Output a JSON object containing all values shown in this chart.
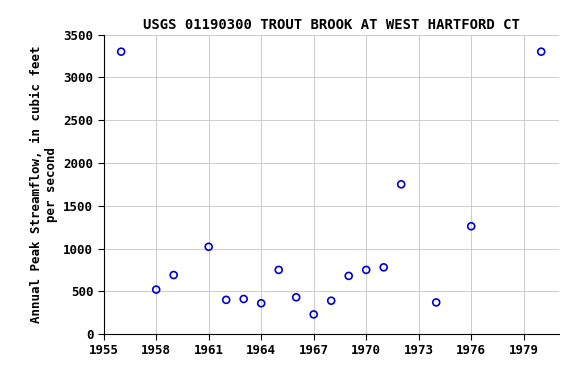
{
  "title": "USGS 01190300 TROUT BROOK AT WEST HARTFORD CT",
  "ylabel_line1": "Annual Peak Streamflow, in cubic feet",
  "ylabel_line2": "per second",
  "years": [
    1956,
    1958,
    1959,
    1961,
    1962,
    1963,
    1964,
    1965,
    1966,
    1967,
    1968,
    1969,
    1970,
    1971,
    1972,
    1974,
    1976,
    1980
  ],
  "flows": [
    3300,
    520,
    690,
    1020,
    400,
    410,
    360,
    750,
    430,
    230,
    390,
    680,
    750,
    780,
    1750,
    370,
    1260,
    3300
  ],
  "marker_color": "#0000cc",
  "marker_size": 5,
  "marker_edge_width": 1.2,
  "xlim": [
    1955,
    1981
  ],
  "ylim": [
    0,
    3500
  ],
  "xticks": [
    1955,
    1958,
    1961,
    1964,
    1967,
    1970,
    1973,
    1976,
    1979
  ],
  "yticks": [
    0,
    500,
    1000,
    1500,
    2000,
    2500,
    3000,
    3500
  ],
  "grid_color": "#cccccc",
  "bg_color": "#ffffff",
  "title_fontsize": 10,
  "label_fontsize": 9,
  "tick_fontsize": 9
}
